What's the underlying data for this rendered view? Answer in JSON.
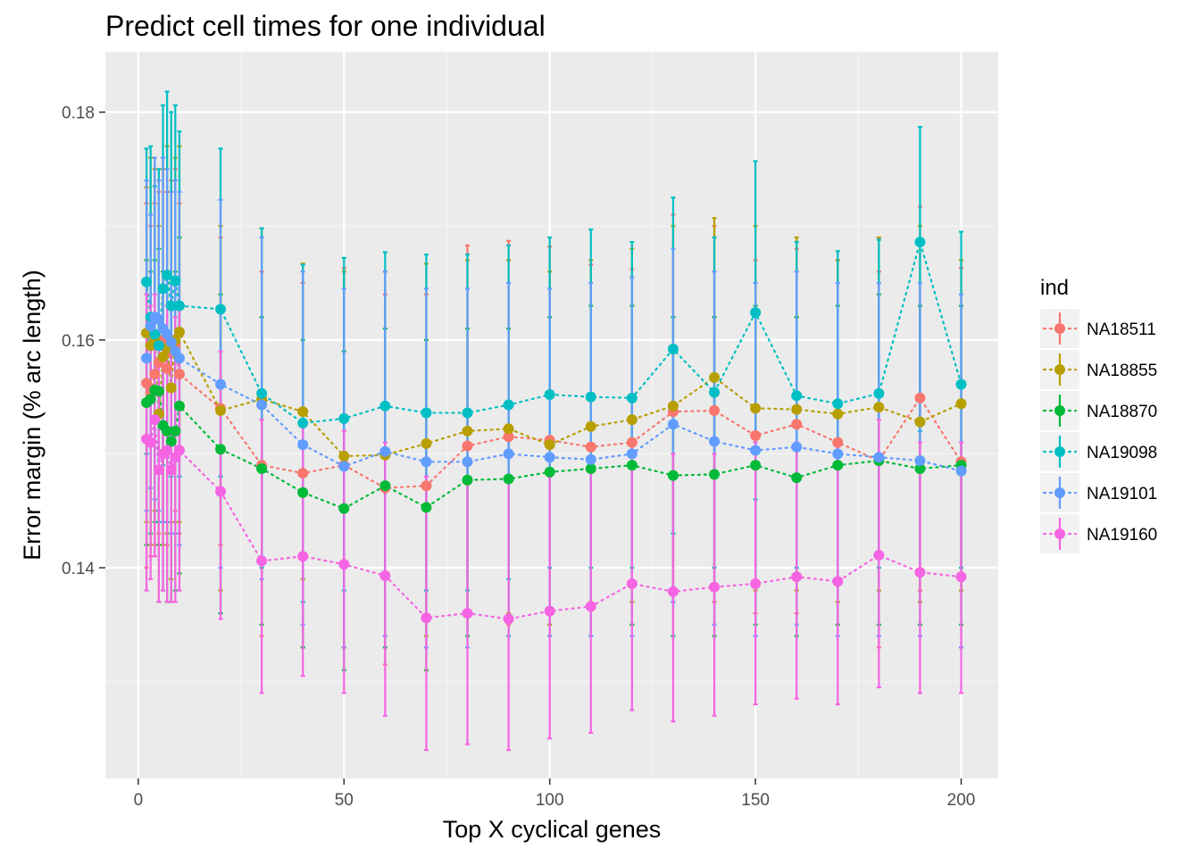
{
  "chart_data": {
    "type": "line",
    "title": "Predict cell times for one individual",
    "xlabel": "Top X cyclical genes",
    "ylabel": "Error margin (% arc length)",
    "xlim": [
      -8,
      209
    ],
    "ylim": [
      0.1215,
      0.1853
    ],
    "x_ticks": [
      0,
      50,
      100,
      150,
      200
    ],
    "x_tick_labels": [
      "0",
      "50",
      "100",
      "150",
      "200"
    ],
    "y_ticks": [
      0.14,
      0.16,
      0.18
    ],
    "y_tick_labels": [
      "0.14",
      "0.16",
      "0.18"
    ],
    "grid": true,
    "line_style": "dotted",
    "error_bars": true,
    "legend": {
      "title": "ind",
      "position": "right"
    },
    "x": [
      2,
      3,
      4,
      5,
      6,
      7,
      8,
      9,
      10,
      20,
      30,
      40,
      50,
      60,
      70,
      80,
      90,
      100,
      110,
      120,
      130,
      140,
      150,
      160,
      170,
      180,
      190,
      200
    ],
    "series": [
      {
        "name": "NA18511",
        "color": "#F8766D",
        "values": [
          0.1562,
          0.1553,
          0.157,
          0.158,
          0.16,
          0.1575,
          0.159,
          0.1595,
          0.157,
          0.154,
          0.149,
          0.1483,
          0.149,
          0.147,
          0.1472,
          0.1507,
          0.1515,
          0.1512,
          0.1506,
          0.151,
          0.1537,
          0.1538,
          0.1516,
          0.1526,
          0.151,
          0.1494,
          0.1549,
          0.1493
        ],
        "lower": [
          0.14,
          0.141,
          0.142,
          0.143,
          0.144,
          0.142,
          0.144,
          0.145,
          0.143,
          0.142,
          0.134,
          0.133,
          0.133,
          0.1315,
          0.131,
          0.134,
          0.135,
          0.135,
          0.134,
          0.135,
          0.137,
          0.137,
          0.136,
          0.136,
          0.135,
          0.133,
          0.138,
          0.133
        ],
        "upper": [
          0.172,
          0.17,
          0.172,
          0.173,
          0.176,
          0.173,
          0.174,
          0.175,
          0.172,
          0.169,
          0.166,
          0.165,
          0.1663,
          0.164,
          0.164,
          0.1683,
          0.1687,
          0.1682,
          0.1666,
          0.1662,
          0.171,
          0.17,
          0.167,
          0.168,
          0.167,
          0.166,
          0.1717,
          0.1663
        ]
      },
      {
        "name": "NA18855",
        "color": "#B79F00",
        "values": [
          0.1606,
          0.1595,
          0.16,
          0.1535,
          0.1585,
          0.1593,
          0.1558,
          0.16,
          0.1607,
          0.1538,
          0.1548,
          0.1537,
          0.1498,
          0.1499,
          0.1509,
          0.152,
          0.1522,
          0.1508,
          0.1524,
          0.153,
          0.1542,
          0.1567,
          0.154,
          0.1539,
          0.1535,
          0.1541,
          0.1528,
          0.1544
        ],
        "lower": [
          0.144,
          0.142,
          0.145,
          0.137,
          0.142,
          0.143,
          0.139,
          0.144,
          0.144,
          0.138,
          0.14,
          0.139,
          0.133,
          0.134,
          0.134,
          0.136,
          0.136,
          0.135,
          0.137,
          0.137,
          0.138,
          0.14,
          0.138,
          0.138,
          0.137,
          0.138,
          0.137,
          0.138
        ],
        "upper": [
          0.1734,
          0.176,
          0.175,
          0.17,
          0.175,
          0.177,
          0.173,
          0.176,
          0.177,
          0.17,
          0.1698,
          0.1667,
          0.166,
          0.166,
          0.1667,
          0.167,
          0.167,
          0.166,
          0.167,
          0.168,
          0.17,
          0.1707,
          0.17,
          0.169,
          0.167,
          0.169,
          0.17,
          0.167
        ]
      },
      {
        "name": "NA18870",
        "color": "#00BA38",
        "values": [
          0.1545,
          0.1548,
          0.1556,
          0.1555,
          0.1525,
          0.152,
          0.1511,
          0.152,
          0.1542,
          0.1504,
          0.1487,
          0.1466,
          0.1452,
          0.1472,
          0.1453,
          0.1477,
          0.1478,
          0.1484,
          0.1487,
          0.149,
          0.1481,
          0.1482,
          0.149,
          0.1479,
          0.149,
          0.1494,
          0.1487,
          0.149
        ],
        "lower": [
          0.142,
          0.143,
          0.144,
          0.142,
          0.138,
          0.137,
          0.137,
          0.138,
          0.1395,
          0.136,
          0.135,
          0.133,
          0.131,
          0.133,
          0.131,
          0.134,
          0.134,
          0.134,
          0.134,
          0.135,
          0.134,
          0.134,
          0.135,
          0.134,
          0.135,
          0.135,
          0.135,
          0.135
        ],
        "upper": [
          0.167,
          0.166,
          0.167,
          0.168,
          0.166,
          0.166,
          0.165,
          0.166,
          0.169,
          0.164,
          0.162,
          0.16,
          0.159,
          0.161,
          0.16,
          0.161,
          0.161,
          0.162,
          0.163,
          0.163,
          0.162,
          0.162,
          0.163,
          0.162,
          0.163,
          0.164,
          0.163,
          0.163
        ]
      },
      {
        "name": "NA19098",
        "color": "#00BFC4",
        "values": [
          0.1651,
          0.162,
          0.1605,
          0.1595,
          0.1645,
          0.1657,
          0.163,
          0.1652,
          0.163,
          0.1627,
          0.1553,
          0.1527,
          0.1531,
          0.1542,
          0.1536,
          0.1536,
          0.1543,
          0.1552,
          0.155,
          0.1549,
          0.1592,
          0.1554,
          0.1624,
          0.1551,
          0.1544,
          0.1553,
          0.1686,
          0.1561
        ],
        "lower": [
          0.15,
          0.147,
          0.146,
          0.144,
          0.149,
          0.15,
          0.148,
          0.15,
          0.148,
          0.148,
          0.14,
          0.137,
          0.138,
          0.139,
          0.138,
          0.138,
          0.139,
          0.14,
          0.14,
          0.14,
          0.143,
          0.14,
          0.146,
          0.14,
          0.139,
          0.14,
          0.152,
          0.14
        ],
        "upper": [
          0.1768,
          0.177,
          0.1735,
          0.175,
          0.1806,
          0.1818,
          0.18,
          0.1806,
          0.1783,
          0.1768,
          0.1698,
          0.1666,
          0.1672,
          0.1677,
          0.1675,
          0.1675,
          0.1683,
          0.169,
          0.1697,
          0.1686,
          0.1725,
          0.169,
          0.1757,
          0.1686,
          0.1678,
          0.1688,
          0.1787,
          0.1695
        ]
      },
      {
        "name": "NA19101",
        "color": "#619CFF",
        "values": [
          0.1584,
          0.1612,
          0.162,
          0.1618,
          0.161,
          0.1605,
          0.1598,
          0.159,
          0.1584,
          0.1561,
          0.1543,
          0.1508,
          0.1489,
          0.1502,
          0.1493,
          0.1493,
          0.15,
          0.1497,
          0.1495,
          0.15,
          0.1526,
          0.1511,
          0.1503,
          0.1506,
          0.15,
          0.1497,
          0.1494,
          0.1485
        ],
        "lower": [
          0.145,
          0.147,
          0.146,
          0.145,
          0.144,
          0.144,
          0.143,
          0.143,
          0.142,
          0.14,
          0.139,
          0.135,
          0.133,
          0.134,
          0.133,
          0.133,
          0.134,
          0.134,
          0.134,
          0.134,
          0.137,
          0.135,
          0.134,
          0.135,
          0.134,
          0.134,
          0.134,
          0.133
        ],
        "upper": [
          0.174,
          0.171,
          0.176,
          0.174,
          0.176,
          0.175,
          0.173,
          0.174,
          0.173,
          0.1723,
          0.169,
          0.166,
          0.1645,
          0.166,
          0.1645,
          0.1645,
          0.165,
          0.1645,
          0.165,
          0.1655,
          0.168,
          0.166,
          0.165,
          0.166,
          0.165,
          0.165,
          0.165,
          0.164
        ]
      },
      {
        "name": "NA19160",
        "color": "#F564E3",
        "values": [
          0.1513,
          0.151,
          0.153,
          0.1486,
          0.15,
          0.1503,
          0.1486,
          0.1497,
          0.1503,
          0.1467,
          0.1406,
          0.141,
          0.1403,
          0.1393,
          0.1356,
          0.136,
          0.1355,
          0.1362,
          0.1366,
          0.1386,
          0.1379,
          0.1383,
          0.1386,
          0.1392,
          0.1388,
          0.1411,
          0.1396,
          0.1392
        ],
        "lower": [
          0.138,
          0.139,
          0.141,
          0.137,
          0.138,
          0.137,
          0.137,
          0.137,
          0.138,
          0.1355,
          0.129,
          0.1305,
          0.129,
          0.127,
          0.124,
          0.1245,
          0.124,
          0.125,
          0.1255,
          0.1275,
          0.1265,
          0.127,
          0.128,
          0.1285,
          0.128,
          0.1295,
          0.129,
          0.129
        ],
        "upper": [
          0.164,
          0.163,
          0.164,
          0.16,
          0.161,
          0.163,
          0.16,
          0.162,
          0.163,
          0.159,
          0.153,
          0.153,
          0.152,
          0.151,
          0.148,
          0.148,
          0.148,
          0.148,
          0.149,
          0.151,
          0.15,
          0.15,
          0.151,
          0.151,
          0.151,
          0.153,
          0.151,
          0.151
        ]
      }
    ]
  }
}
